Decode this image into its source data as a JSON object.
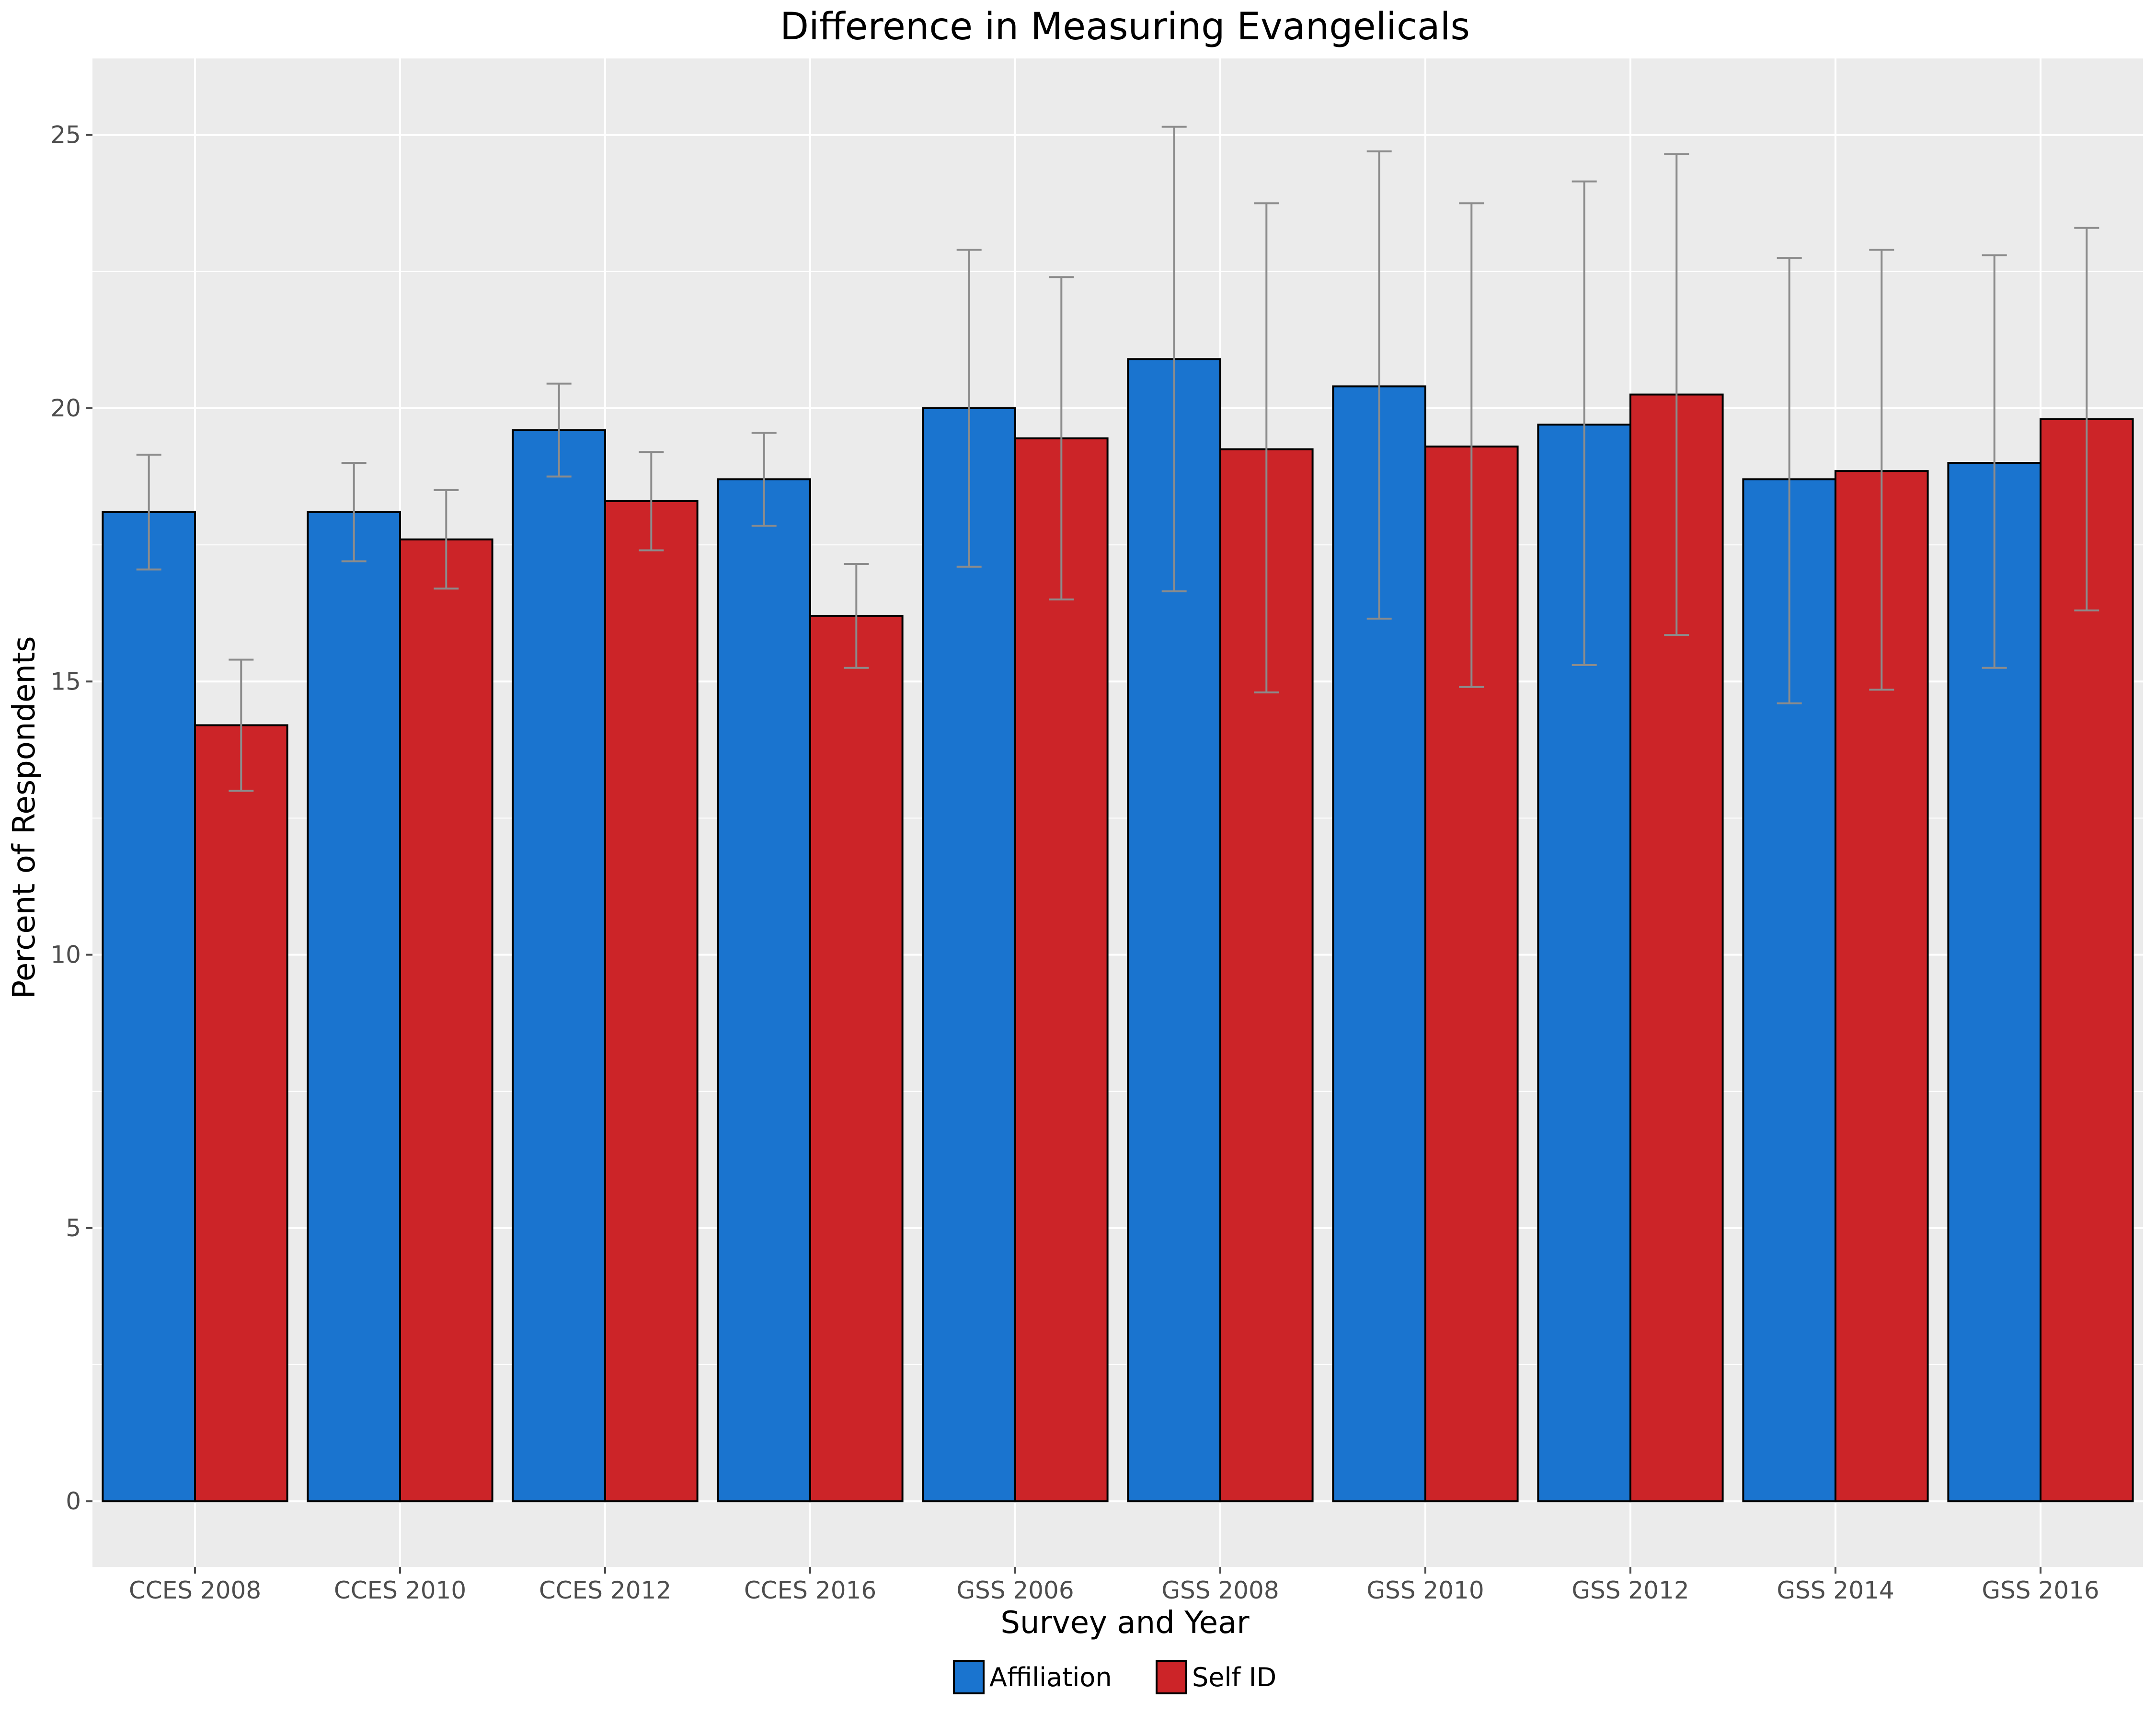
{
  "chart_data": {
    "type": "bar",
    "title": "Difference in Measuring Evangelicals",
    "xlabel": "Survey and Year",
    "ylabel": "Percent of Respondents",
    "categories": [
      "CCES 2008",
      "CCES 2010",
      "CCES 2012",
      "CCES 2016",
      "GSS 2006",
      "GSS 2008",
      "GSS 2010",
      "GSS 2012",
      "GSS 2014",
      "GSS 2016"
    ],
    "series": [
      {
        "name": "Affiliation",
        "color": "#1a74cf",
        "values": [
          18.1,
          18.1,
          19.6,
          18.7,
          20.0,
          20.9,
          20.4,
          19.7,
          18.7,
          19.0
        ],
        "error_low": [
          17.05,
          17.2,
          18.75,
          17.85,
          17.1,
          16.65,
          16.15,
          15.3,
          14.6,
          15.25
        ],
        "error_high": [
          19.15,
          19.0,
          20.45,
          19.55,
          22.9,
          25.15,
          24.7,
          24.15,
          22.75,
          22.8
        ]
      },
      {
        "name": "Self ID",
        "color": "#cc2428",
        "values": [
          14.2,
          17.6,
          18.3,
          16.2,
          19.45,
          19.25,
          19.3,
          20.25,
          18.85,
          19.8
        ],
        "error_low": [
          13.0,
          16.7,
          17.4,
          15.25,
          16.5,
          14.8,
          14.9,
          15.85,
          14.85,
          16.3
        ],
        "error_high": [
          15.4,
          18.5,
          19.2,
          17.15,
          22.4,
          23.75,
          23.75,
          24.65,
          22.9,
          23.3
        ]
      }
    ],
    "y_ticks": [
      0,
      5,
      10,
      15,
      20,
      25
    ],
    "ylim": [
      -1.2,
      26.4
    ],
    "grid": true,
    "legend_position": "bottom",
    "error_bar_color": "#8c8c8c",
    "panel_background": "#ebebeb"
  }
}
